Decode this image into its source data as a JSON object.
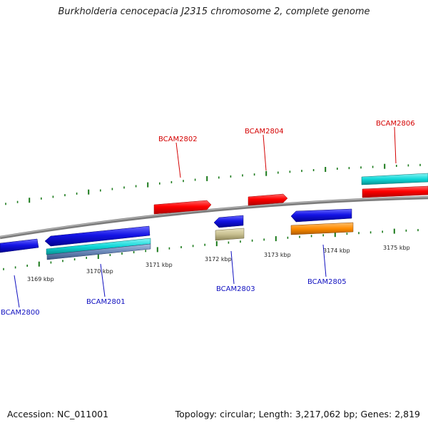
{
  "title": "Burkholderia cenocepacia J2315 chromosome 2, complete genome",
  "footer": {
    "accession": "Accession: NC_011001",
    "summary": "Topology: circular; Length: 3,217,062 bp; Genes: 2,819"
  },
  "colors": {
    "forward_gene": "#ff0000",
    "reverse_gene": "#1010e0",
    "feature_cyan": "#10d8d8",
    "feature_steel": "#6b88b8",
    "feature_khaki": "#c8c090",
    "feature_orange": "#ff8c00",
    "backbone": "#888888",
    "tick": "#1a7a1a",
    "forward_label": "#d40000",
    "reverse_label": "#1010c0"
  },
  "ruler_labels": [
    "3169 kbp",
    "3170 kbp",
    "3171 kbp",
    "3172 kbp",
    "3173 kbp",
    "3174 kbp",
    "3175 kbp"
  ],
  "forward_genes": [
    {
      "label": "BCAM2802",
      "strand": "+"
    },
    {
      "label": "BCAM2804",
      "strand": "+"
    },
    {
      "label": "BCAM2806",
      "strand": "+"
    }
  ],
  "reverse_genes": [
    {
      "label": "BCAM2800",
      "strand": "-"
    },
    {
      "label": "BCAM2801",
      "strand": "-"
    },
    {
      "label": "BCAM2803",
      "strand": "-"
    },
    {
      "label": "BCAM2805",
      "strand": "-"
    }
  ]
}
